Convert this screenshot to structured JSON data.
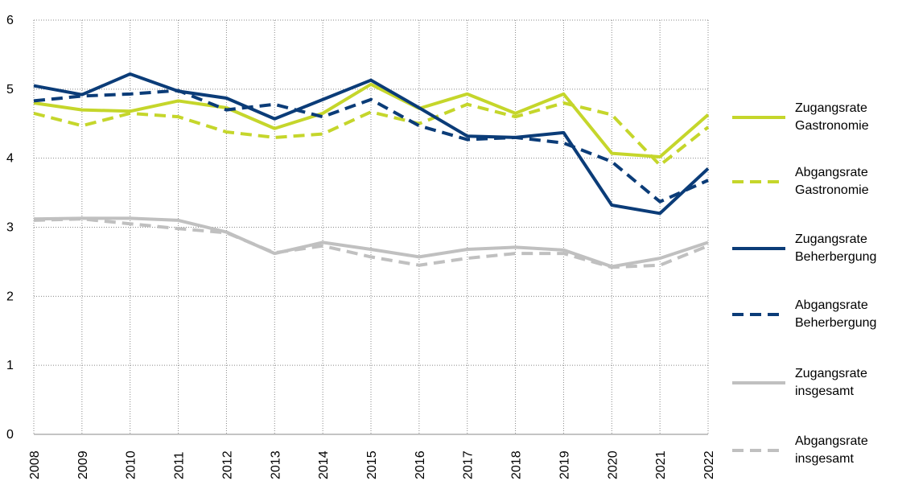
{
  "chart_data": {
    "type": "line",
    "categories": [
      "2008",
      "2009",
      "2010",
      "2011",
      "2012",
      "2013",
      "2014",
      "2015",
      "2016",
      "2017",
      "2018",
      "2019",
      "2020",
      "2021",
      "2022"
    ],
    "series": [
      {
        "name": "Zugangsrate Gastronomie",
        "color": "#c5d62b",
        "dash": false,
        "values": [
          4.8,
          4.7,
          4.68,
          4.83,
          4.73,
          4.43,
          4.65,
          5.07,
          4.72,
          4.93,
          4.65,
          4.93,
          4.07,
          4.02,
          4.63
        ]
      },
      {
        "name": "Abgangsrate Gastronomie",
        "color": "#c5d62b",
        "dash": true,
        "values": [
          4.65,
          4.47,
          4.65,
          4.6,
          4.38,
          4.3,
          4.35,
          4.67,
          4.5,
          4.78,
          4.6,
          4.8,
          4.63,
          3.9,
          4.45
        ]
      },
      {
        "name": "Zugangsrate Beherbergung",
        "color": "#0b3c78",
        "dash": false,
        "values": [
          5.05,
          4.92,
          5.22,
          4.97,
          4.87,
          4.57,
          4.85,
          5.13,
          4.73,
          4.32,
          4.3,
          4.37,
          3.32,
          3.2,
          3.85
        ]
      },
      {
        "name": "Abgangsrate Beherbergung",
        "color": "#0b3c78",
        "dash": true,
        "values": [
          4.83,
          4.9,
          4.93,
          4.98,
          4.7,
          4.78,
          4.6,
          4.85,
          4.47,
          4.27,
          4.3,
          4.22,
          3.95,
          3.37,
          3.68
        ]
      },
      {
        "name": "Zugangsrate insgesamt",
        "color": "#c0c0c0",
        "dash": false,
        "values": [
          3.12,
          3.13,
          3.13,
          3.1,
          2.93,
          2.62,
          2.78,
          2.68,
          2.57,
          2.68,
          2.71,
          2.67,
          2.43,
          2.55,
          2.78
        ]
      },
      {
        "name": "Abgangsrate insgesamt",
        "color": "#c0c0c0",
        "dash": true,
        "values": [
          3.1,
          3.12,
          3.05,
          2.98,
          2.92,
          2.63,
          2.73,
          2.57,
          2.45,
          2.55,
          2.62,
          2.62,
          2.42,
          2.45,
          2.73
        ]
      }
    ],
    "ylim": [
      0,
      6
    ],
    "yticks": [
      0,
      1,
      2,
      3,
      4,
      5,
      6
    ],
    "grid": true,
    "legend": "right"
  }
}
